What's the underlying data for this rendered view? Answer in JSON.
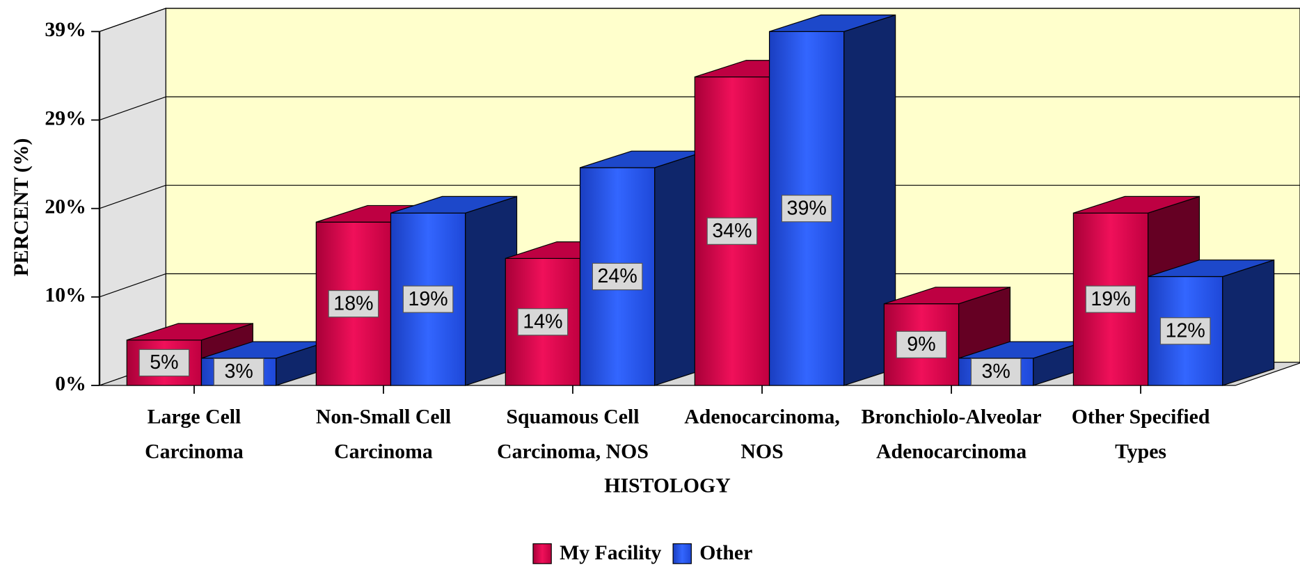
{
  "chart_data": {
    "type": "bar3d",
    "x_label": "HISTOLOGY",
    "y_label": "PERCENT (%)",
    "categories": [
      [
        "Large Cell",
        "Carcinoma"
      ],
      [
        "Non-Small Cell",
        "Carcinoma"
      ],
      [
        "Squamous Cell",
        "Carcinoma, NOS"
      ],
      [
        "Adenocarcinoma,",
        "NOS"
      ],
      [
        "Bronchiolo-Alveolar",
        "Adenocarcinoma"
      ],
      [
        "Other Specified",
        "Types"
      ]
    ],
    "series": [
      {
        "name": "My Facility",
        "color": "#e0004e",
        "values": [
          5,
          18,
          14,
          34,
          9,
          19
        ],
        "value_labels": [
          "5%",
          "18%",
          "14%",
          "34%",
          "9%",
          "19%"
        ]
      },
      {
        "name": "Other",
        "color": "#2255ee",
        "values": [
          3,
          19,
          24,
          39,
          3,
          12
        ],
        "value_labels": [
          "3%",
          "19%",
          "24%",
          "39%",
          "3%",
          "12%"
        ]
      }
    ],
    "ylim": [
      0,
      39
    ],
    "yticks": [
      {
        "value": 0,
        "label": "0%"
      },
      {
        "value": 9.75,
        "label": "10%"
      },
      {
        "value": 19.5,
        "label": "20%"
      },
      {
        "value": 29.25,
        "label": "29%"
      },
      {
        "value": 39,
        "label": "39%"
      }
    ],
    "grid": true,
    "legend": "bottom"
  }
}
